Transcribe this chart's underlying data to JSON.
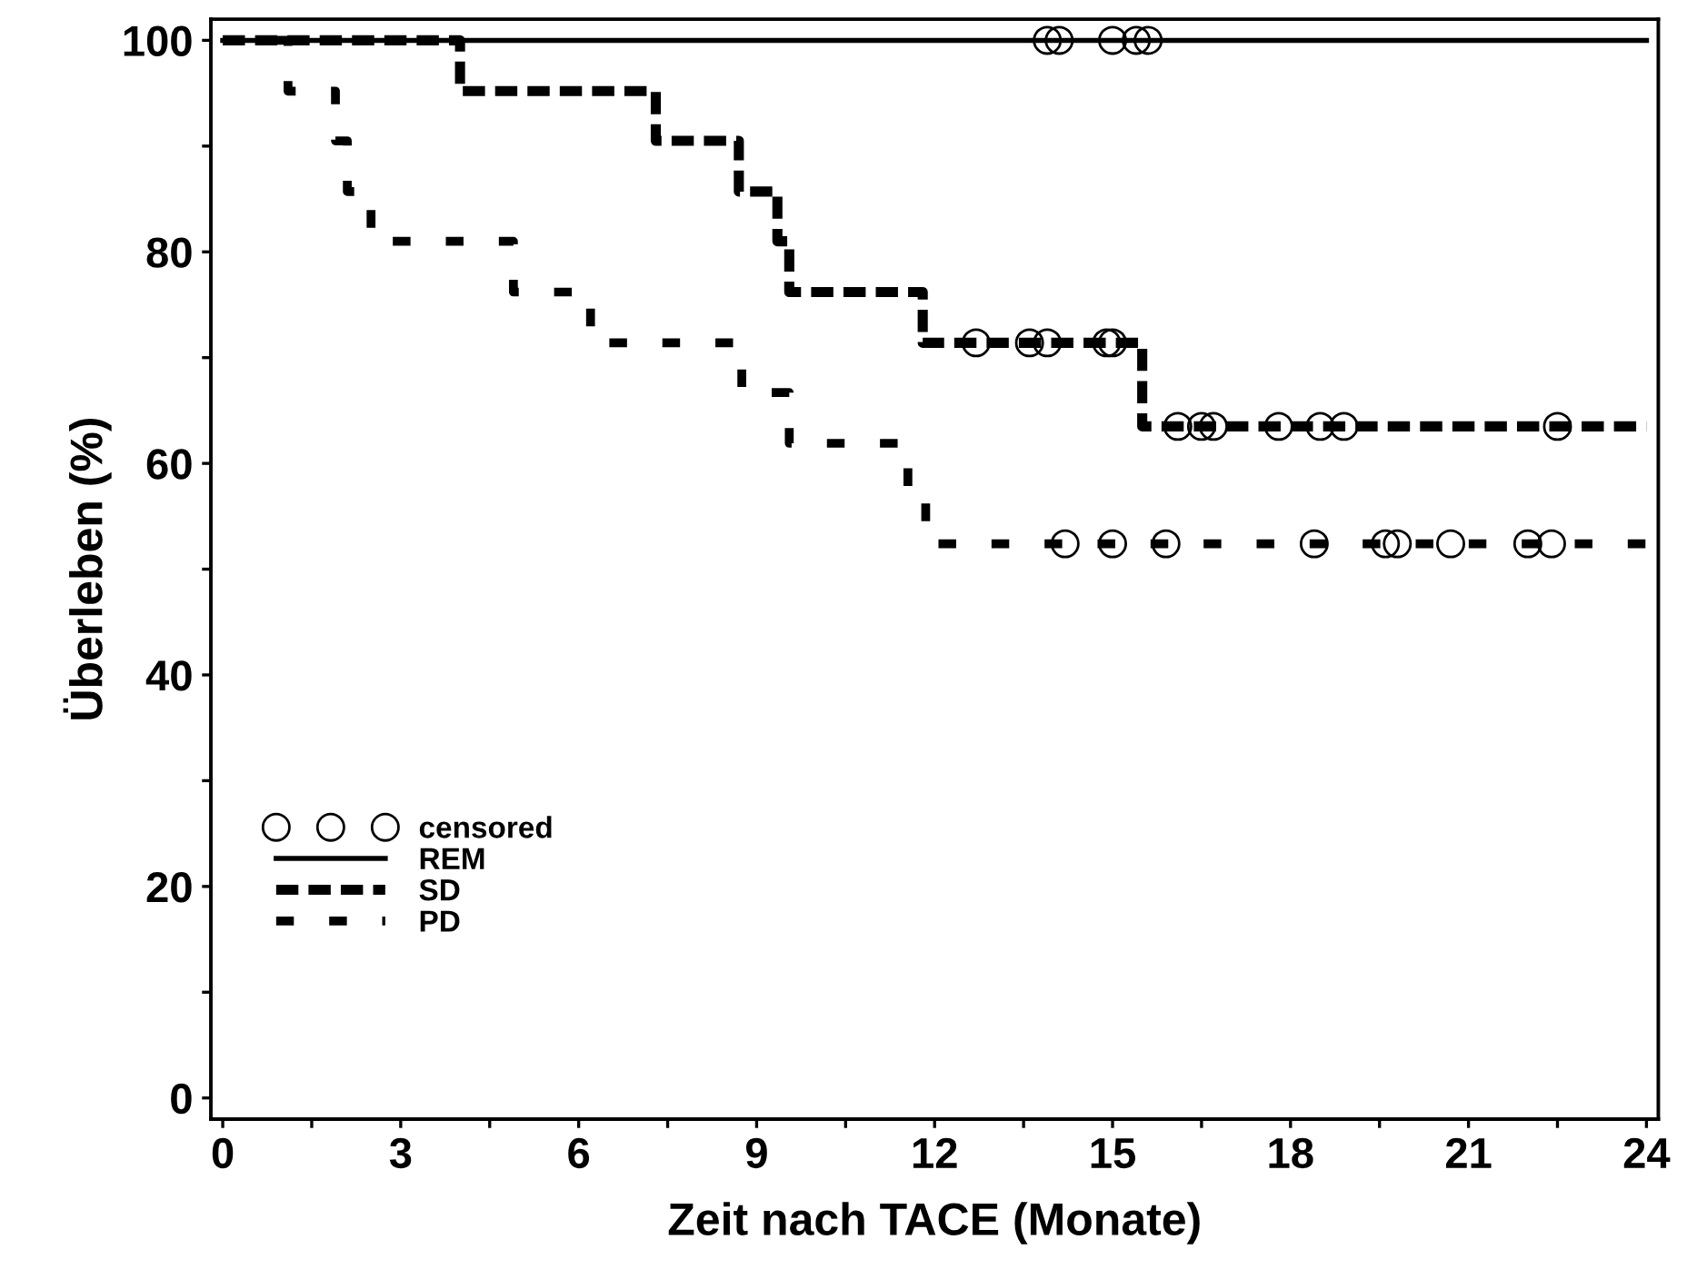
{
  "chart_data": {
    "type": "step",
    "xlabel": "Zeit nach TACE (Monate)",
    "ylabel": "Überleben (%)",
    "xlim": [
      -0.2,
      24.2
    ],
    "ylim": [
      -2,
      102
    ],
    "xticks": [
      0,
      {
        "value": 1.5,
        "label": null
      },
      3,
      {
        "value": 4.5,
        "label": null
      },
      6,
      {
        "value": 7.5,
        "label": null
      },
      9,
      {
        "value": 10.5,
        "label": null
      },
      12,
      {
        "value": 13.5,
        "label": null
      },
      15,
      {
        "value": 16.5,
        "label": null
      },
      18,
      {
        "value": 19.5,
        "label": null
      },
      21,
      {
        "value": 22.5,
        "label": null
      },
      24
    ],
    "yticks": [
      0,
      {
        "value": 10,
        "label": null
      },
      20,
      {
        "value": 30,
        "label": null
      },
      40,
      {
        "value": 50,
        "label": null
      },
      60,
      {
        "value": 70,
        "label": null
      },
      80,
      {
        "value": 90,
        "label": null
      },
      100
    ],
    "grid": false,
    "legend": "bottom left",
    "series": [
      {
        "name": "censored",
        "type": "scatter",
        "marker": "circle",
        "color": "#000000",
        "x": [
          13.9,
          14.1,
          15.0,
          15.4,
          15.6,
          12.7,
          13.6,
          13.9,
          14.9,
          15.0,
          16.1,
          16.5,
          16.7,
          17.8,
          18.5,
          18.9,
          22.5,
          14.2,
          15.0,
          15.9,
          18.4,
          19.6,
          19.8,
          20.7,
          22.0,
          22.4
        ],
        "values": [
          100,
          100,
          100,
          100,
          100,
          71.4,
          71.4,
          71.4,
          71.4,
          71.4,
          63.5,
          63.5,
          63.5,
          63.5,
          63.5,
          63.5,
          63.5,
          52.4,
          52.4,
          52.4,
          52.4,
          52.4,
          52.4,
          52.4,
          52.4,
          52.4
        ]
      },
      {
        "name": "REM",
        "line_style": "solid",
        "color": "#000000",
        "x": [
          0,
          24
        ],
        "values": [
          100,
          100
        ]
      },
      {
        "name": "SD",
        "line_style": "dotted",
        "color": "#000000",
        "x": [
          0,
          4.0,
          7.3,
          8.7,
          9.35,
          9.55,
          11.8,
          15.5,
          24
        ],
        "values": [
          100,
          95.2,
          90.5,
          85.7,
          81.0,
          76.2,
          71.4,
          63.5,
          63.5
        ]
      },
      {
        "name": "PD",
        "line_style": "dashed",
        "color": "#000000",
        "x": [
          0,
          1.1,
          1.9,
          2.1,
          2.5,
          4.9,
          6.2,
          8.75,
          9.55,
          11.55,
          11.85,
          24
        ],
        "values": [
          100,
          95.2,
          90.5,
          85.7,
          81.0,
          76.2,
          71.4,
          66.7,
          61.9,
          57.1,
          52.4,
          52.4
        ]
      }
    ]
  }
}
